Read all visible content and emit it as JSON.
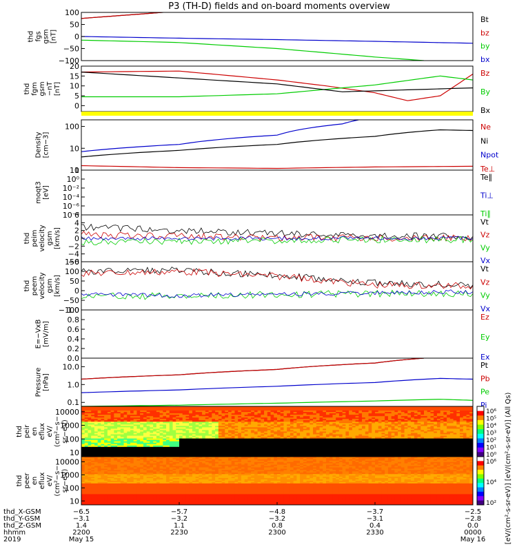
{
  "title": "P3 (TH-D) fields and on-board moments overview",
  "chart_data": [
    {
      "type": "line",
      "name": "fgs",
      "ylabel": [
        "thd",
        "fgs",
        "gsm",
        "[nT]"
      ],
      "ylim": [
        -100,
        100
      ],
      "scale": "linear",
      "yticks": [
        "100",
        "50",
        "0",
        "−50",
        "−100"
      ],
      "yticks_v": [
        100,
        50,
        0,
        -50,
        -100
      ],
      "series": [
        {
          "name": "Bt",
          "color": "#000000",
          "x": [
            2200,
            2230
          ],
          "y": [
            75,
            105
          ]
        },
        {
          "name": "bz",
          "color": "#cc0000",
          "x": [
            2200,
            2230
          ],
          "y": [
            75,
            105
          ]
        },
        {
          "name": "by",
          "color": "#00cc00",
          "x": [
            2200,
            2230,
            2300,
            2330,
            2345
          ],
          "y": [
            -15,
            -25,
            -50,
            -85,
            -100
          ]
        },
        {
          "name": "bx",
          "color": "#0000cc",
          "x": [
            2200,
            2230,
            2300,
            2330,
            0
          ],
          "y": [
            0,
            -7,
            -13,
            -20,
            -28
          ]
        }
      ]
    },
    {
      "type": "line",
      "name": "fgm",
      "ylabel": [
        "thd",
        "fgm",
        "gsm",
        "−nT",
        "[nT]"
      ],
      "ylim": [
        -3,
        20
      ],
      "scale": "linear",
      "yticks": [
        "20",
        "15",
        "10",
        "5",
        "0"
      ],
      "yticks_v": [
        20,
        15,
        10,
        5,
        0
      ],
      "series": [
        {
          "name": "Bz",
          "color": "#cc0000",
          "x": [
            2200,
            2230,
            2300,
            2315,
            2330,
            2340,
            2350,
            0
          ],
          "y": [
            17,
            17.5,
            13,
            10,
            6.5,
            2.5,
            5,
            16
          ]
        },
        {
          "name": "By",
          "color": "#00cc00",
          "x": [
            2200,
            2230,
            2300,
            2330,
            2350,
            0
          ],
          "y": [
            4.5,
            4.5,
            6,
            10.5,
            15,
            13
          ]
        },
        {
          "name": "Bx",
          "color": "#000000",
          "x": [
            2200,
            2230,
            2300,
            2320,
            2340,
            0
          ],
          "y": [
            17,
            14,
            11,
            7,
            8,
            9
          ]
        }
      ]
    },
    {
      "type": "line",
      "name": "density",
      "ylabel": [
        "Density",
        "[cm−3]"
      ],
      "ylim": [
        1,
        200
      ],
      "scale": "log",
      "yticks": [
        "100",
        "10",
        "1"
      ],
      "yticks_v": [
        100,
        10,
        1
      ],
      "series": [
        {
          "name": "Ne",
          "color": "#cc0000",
          "x": [
            2200,
            2230,
            2300,
            2330,
            0
          ],
          "y": [
            1.6,
            1.3,
            1.2,
            1.4,
            1.5
          ]
        },
        {
          "name": "Ni",
          "color": "#000000",
          "x": [
            2200,
            2230,
            2300,
            2330,
            2350,
            0
          ],
          "y": [
            4,
            8,
            15,
            35,
            70,
            65
          ]
        },
        {
          "name": "Npot",
          "color": "#0000cc",
          "x": [
            2200,
            2230,
            2300,
            2320,
            2325
          ],
          "y": [
            7,
            15,
            40,
            130,
            200
          ]
        },
        {
          "name": "Te⊥",
          "color": "#cc0000"
        }
      ]
    },
    {
      "type": "line",
      "name": "temperature",
      "ylabel": [
        "moqt3",
        "[eV]"
      ],
      "ylim": [
        1e-08,
        100.0
      ],
      "scale": "log",
      "yticks": [
        "10⁲",
        "10⁰",
        "10⁻²",
        "10⁻⁴",
        "10⁻⁶",
        "10⁻⁸"
      ],
      "yticks_v": [
        100,
        1,
        0.01,
        0.0001,
        1e-06,
        1e-08
      ],
      "series": [
        {
          "name": "Te∥",
          "color": "#000000"
        },
        {
          "name": "Ti⊥",
          "color": "#0000cc"
        },
        {
          "name": "Ti∥",
          "color": "#00cc00"
        }
      ]
    },
    {
      "type": "line",
      "name": "peim-velocity",
      "ylabel": [
        "thd",
        "peim",
        "velocity",
        "gsm",
        "[km/s]"
      ],
      "ylim": [
        -6,
        6
      ],
      "scale": "linear",
      "yticks": [
        "6",
        "4",
        "2",
        "0",
        "−2",
        "−4",
        "−6"
      ],
      "yticks_v": [
        6,
        4,
        2,
        0,
        -2,
        -4,
        -6
      ],
      "series": [
        {
          "name": "Vt",
          "color": "#000000",
          "x": [
            2200,
            2230,
            2300,
            2330,
            0
          ],
          "y": [
            3,
            2,
            1.2,
            0.6,
            0.5
          ]
        },
        {
          "name": "Vz",
          "color": "#cc0000",
          "x": [
            2200,
            2230,
            2300,
            2330,
            0
          ],
          "y": [
            1,
            0.5,
            0.2,
            0.1,
            0.1
          ]
        },
        {
          "name": "Vy",
          "color": "#00cc00",
          "x": [
            2200,
            2230,
            2300,
            2330,
            0
          ],
          "y": [
            -1,
            -0.8,
            -0.5,
            -0.3,
            -0.3
          ]
        },
        {
          "name": "Vx",
          "color": "#0000cc",
          "x": [
            2200,
            2230,
            2300,
            2330,
            0
          ],
          "y": [
            0,
            0,
            0,
            0,
            0
          ]
        }
      ]
    },
    {
      "type": "line",
      "name": "peem-velocity",
      "ylabel": [
        "thd",
        "peem",
        "velocity",
        "gsm",
        "[km/s]"
      ],
      "ylim": [
        -100,
        150
      ],
      "scale": "linear",
      "yticks": [
        "150",
        "100",
        "50",
        "0",
        "−50",
        "−100"
      ],
      "yticks_v": [
        150,
        100,
        50,
        0,
        -50,
        -100
      ],
      "series": [
        {
          "name": "Vt",
          "color": "#000000",
          "x": [
            2200,
            2230,
            2300,
            2330,
            0
          ],
          "y": [
            100,
            105,
            80,
            40,
            30
          ]
        },
        {
          "name": "Vz",
          "color": "#cc0000",
          "x": [
            2200,
            2230,
            2300,
            2330,
            0
          ],
          "y": [
            90,
            100,
            75,
            30,
            25
          ]
        },
        {
          "name": "Vy",
          "color": "#00cc00",
          "x": [
            2200,
            2230,
            2300,
            2330,
            0
          ],
          "y": [
            -25,
            -30,
            -20,
            -15,
            -15
          ]
        },
        {
          "name": "Vx",
          "color": "#0000cc",
          "x": [
            2200,
            2230,
            2300,
            2330,
            0
          ],
          "y": [
            -20,
            -25,
            -20,
            -10,
            -5
          ]
        }
      ]
    },
    {
      "type": "line",
      "name": "efield",
      "ylabel": [
        "E=−VxB",
        "[mV/m]"
      ],
      "ylim": [
        0,
        1
      ],
      "scale": "linear",
      "yticks": [
        "1.0",
        "0.8",
        "0.6",
        "0.4",
        "0.2",
        "0.0"
      ],
      "yticks_v": [
        1,
        0.8,
        0.6,
        0.4,
        0.2,
        0
      ],
      "series": [
        {
          "name": "Ez",
          "color": "#cc0000"
        },
        {
          "name": "Ey",
          "color": "#00cc00"
        },
        {
          "name": "Ex",
          "color": "#0000cc"
        }
      ]
    },
    {
      "type": "line",
      "name": "pressure",
      "ylabel": [
        "Pressure",
        "[nPa]"
      ],
      "ylim": [
        0.06,
        30
      ],
      "scale": "log",
      "yticks": [
        "10.0",
        "1.0",
        "0.1"
      ],
      "yticks_v": [
        10,
        1,
        0.1
      ],
      "series": [
        {
          "name": "Pt",
          "color": "#000000",
          "x": [
            2200,
            2230,
            2300,
            2330,
            2345
          ],
          "y": [
            2,
            3.5,
            7,
            16,
            30
          ]
        },
        {
          "name": "Pb",
          "color": "#cc0000",
          "x": [
            2200,
            2230,
            2300,
            2330,
            2345
          ],
          "y": [
            2,
            3.5,
            7,
            16,
            30
          ]
        },
        {
          "name": "Pe",
          "color": "#00cc00",
          "x": [
            2200,
            2230,
            2300,
            2330,
            2350,
            0
          ],
          "y": [
            0.06,
            0.07,
            0.09,
            0.12,
            0.15,
            0.13
          ]
        },
        {
          "name": "Pi",
          "color": "#0000cc",
          "x": [
            2200,
            2230,
            2300,
            2330,
            2350,
            0
          ],
          "y": [
            0.35,
            0.5,
            0.8,
            1.3,
            2.2,
            2
          ]
        }
      ]
    },
    {
      "type": "heatmap",
      "name": "peir-en-eflux",
      "ylabel": [
        "thd",
        "peir",
        "en",
        "eflux",
        "eV/",
        "(cm²−s−",
        "sr−eV)"
      ],
      "ylim": [
        5,
        25000
      ],
      "scale": "log",
      "yticks": [
        "10000",
        "1000",
        "100",
        "10"
      ],
      "yticks_v": [
        10000,
        1000,
        100,
        10
      ]
    },
    {
      "type": "heatmap",
      "name": "peer-en-eflux",
      "ylabel": [
        "thd",
        "peer",
        "en",
        "eflux",
        "eV/",
        "(cm²−s−",
        "sr−eV)"
      ],
      "ylim": [
        5,
        25000
      ],
      "scale": "log",
      "yticks": [
        "10000",
        "1000",
        "100",
        "10"
      ],
      "yticks_v": [
        10000,
        1000,
        100,
        10
      ]
    }
  ],
  "colorbars": [
    {
      "name": "ion-colorbar",
      "labels": [
        "10⁶",
        "10⁵",
        "10⁴",
        "10³",
        "10²",
        "10¹",
        "10⁰"
      ],
      "title": "[eV/(cm²-s-sr-eV)]"
    },
    {
      "name": "electron-colorbar",
      "labels": [
        "10⁶",
        "10⁴",
        "10²"
      ],
      "title": "[eV/(cm²-s-sr-eV)] (All Qs)"
    }
  ],
  "x_axis": {
    "row_labels": [
      "thd_X-GSM",
      "thd_Y-GSM",
      "thd_Z-GSM",
      "hhmm",
      "2019"
    ],
    "ticks": [
      {
        "x": 2200,
        "values": [
          "−6.5",
          "−3.1",
          "1.4",
          "2200",
          "May 15"
        ]
      },
      {
        "x": 2230,
        "values": [
          "−5.7",
          "−3.2",
          "1.1",
          "2230",
          ""
        ]
      },
      {
        "x": 2300,
        "values": [
          "−4.8",
          "−3.2",
          "0.8",
          "2300",
          ""
        ]
      },
      {
        "x": 2330,
        "values": [
          "−3.7",
          "−3.1",
          "0.4",
          "2330",
          ""
        ]
      },
      {
        "x": 0,
        "values": [
          "−2.5",
          "−2.8",
          "0.0",
          "0000",
          "May 16"
        ]
      }
    ]
  }
}
